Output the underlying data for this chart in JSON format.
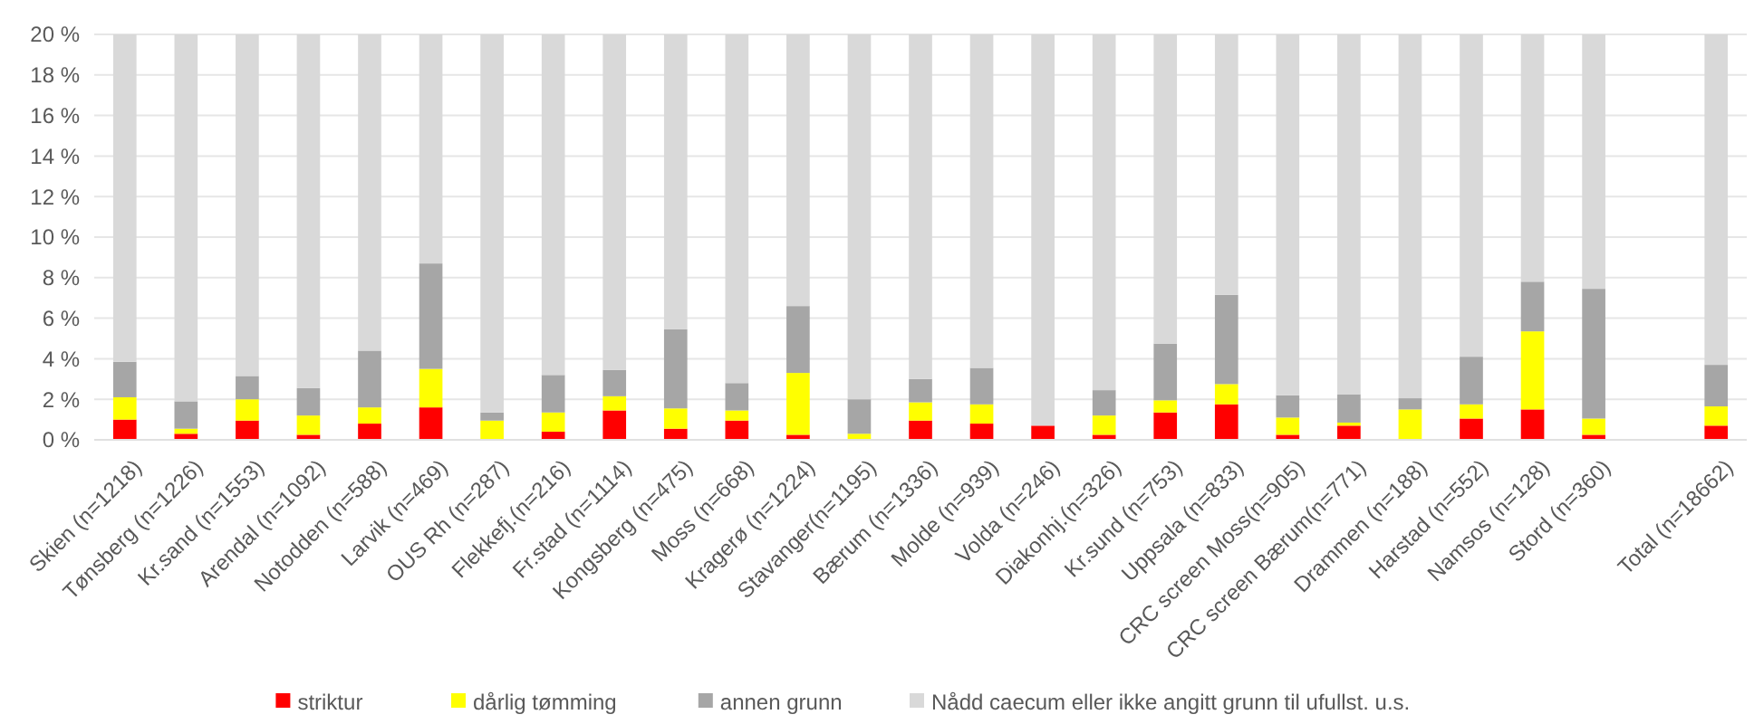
{
  "chart_data": {
    "type": "bar",
    "stacked": true,
    "categories": [
      "Skien (n=1218)",
      "Tønsberg (n=1226)",
      "Kr.sand (n=1553)",
      "Arendal (n=1092)",
      "Notodden (n=588)",
      "Larvik (n=469)",
      "OUS Rh (n=287)",
      "Flekkefj.(n=216)",
      "Fr.stad (n=1114)",
      "Kongsberg (n=475)",
      "Moss (n=668)",
      "Kragerø (n=1224)",
      "Stavanger(n=1195)",
      "Bærum (n=1336)",
      "Molde (n=939)",
      "Volda (n=246)",
      "Diakonhj.(n=326)",
      "Kr.sund (n=753)",
      "Uppsala (n=833)",
      "CRC screen Moss(n=905)",
      "CRC screen Bærum(n=771)",
      "Drammen (n=188)",
      "Harstad (n=552)",
      "Namsos (n=128)",
      "Stord (n=360)",
      null,
      "Total (n=18662)"
    ],
    "series": [
      {
        "name": "striktur",
        "color": "#ff0000",
        "values": [
          1.0,
          0.3,
          0.95,
          0.25,
          0.8,
          1.6,
          0,
          0.4,
          1.45,
          0.55,
          0.95,
          0.25,
          0,
          0.95,
          0.8,
          0.7,
          0.25,
          1.35,
          1.75,
          0.25,
          0.7,
          0,
          1.05,
          1.5,
          0.25,
          null,
          0.7
        ]
      },
      {
        "name": "dårlig tømming",
        "color": "#ffff00",
        "values": [
          1.1,
          0.25,
          1.05,
          0.95,
          0.8,
          1.9,
          0.95,
          0.95,
          0.7,
          1.0,
          0.5,
          3.05,
          0.3,
          0.9,
          0.95,
          0,
          0.95,
          0.6,
          1.0,
          0.85,
          0.15,
          1.5,
          0.7,
          3.85,
          0.8,
          null,
          0.95
        ]
      },
      {
        "name": "annen grunn",
        "color": "#a6a6a6",
        "values": [
          1.75,
          1.35,
          1.15,
          1.35,
          2.8,
          5.2,
          0.4,
          1.85,
          1.3,
          3.9,
          1.35,
          3.3,
          1.7,
          1.15,
          1.8,
          0,
          1.25,
          2.8,
          4.4,
          1.1,
          1.4,
          0.55,
          2.35,
          2.45,
          6.4,
          null,
          2.05
        ]
      },
      {
        "name": "Nådd caecum eller ikke angitt grunn til ufullst. u.s.",
        "color": "#d9d9d9",
        "values": [
          16.15,
          18.1,
          16.85,
          17.45,
          15.6,
          11.3,
          18.65,
          16.8,
          16.55,
          14.55,
          17.2,
          13.4,
          18.0,
          17.0,
          16.45,
          19.3,
          17.55,
          15.25,
          12.85,
          17.8,
          17.75,
          17.95,
          15.9,
          12.2,
          12.55,
          null,
          16.3
        ]
      }
    ],
    "ylim": [
      0,
      20
    ],
    "yticks": [
      {
        "value": 0,
        "label": "0 %"
      },
      {
        "value": 2,
        "label": "2 %"
      },
      {
        "value": 4,
        "label": "4 %"
      },
      {
        "value": 6,
        "label": "6 %"
      },
      {
        "value": 8,
        "label": "8 %"
      },
      {
        "value": 10,
        "label": "10 %"
      },
      {
        "value": 12,
        "label": "12 %"
      },
      {
        "value": 14,
        "label": "14 %"
      },
      {
        "value": 16,
        "label": "16 %"
      },
      {
        "value": 18,
        "label": "18 %"
      },
      {
        "value": 20,
        "label": "20 %"
      }
    ],
    "grid": "y",
    "legend": "bottom"
  }
}
